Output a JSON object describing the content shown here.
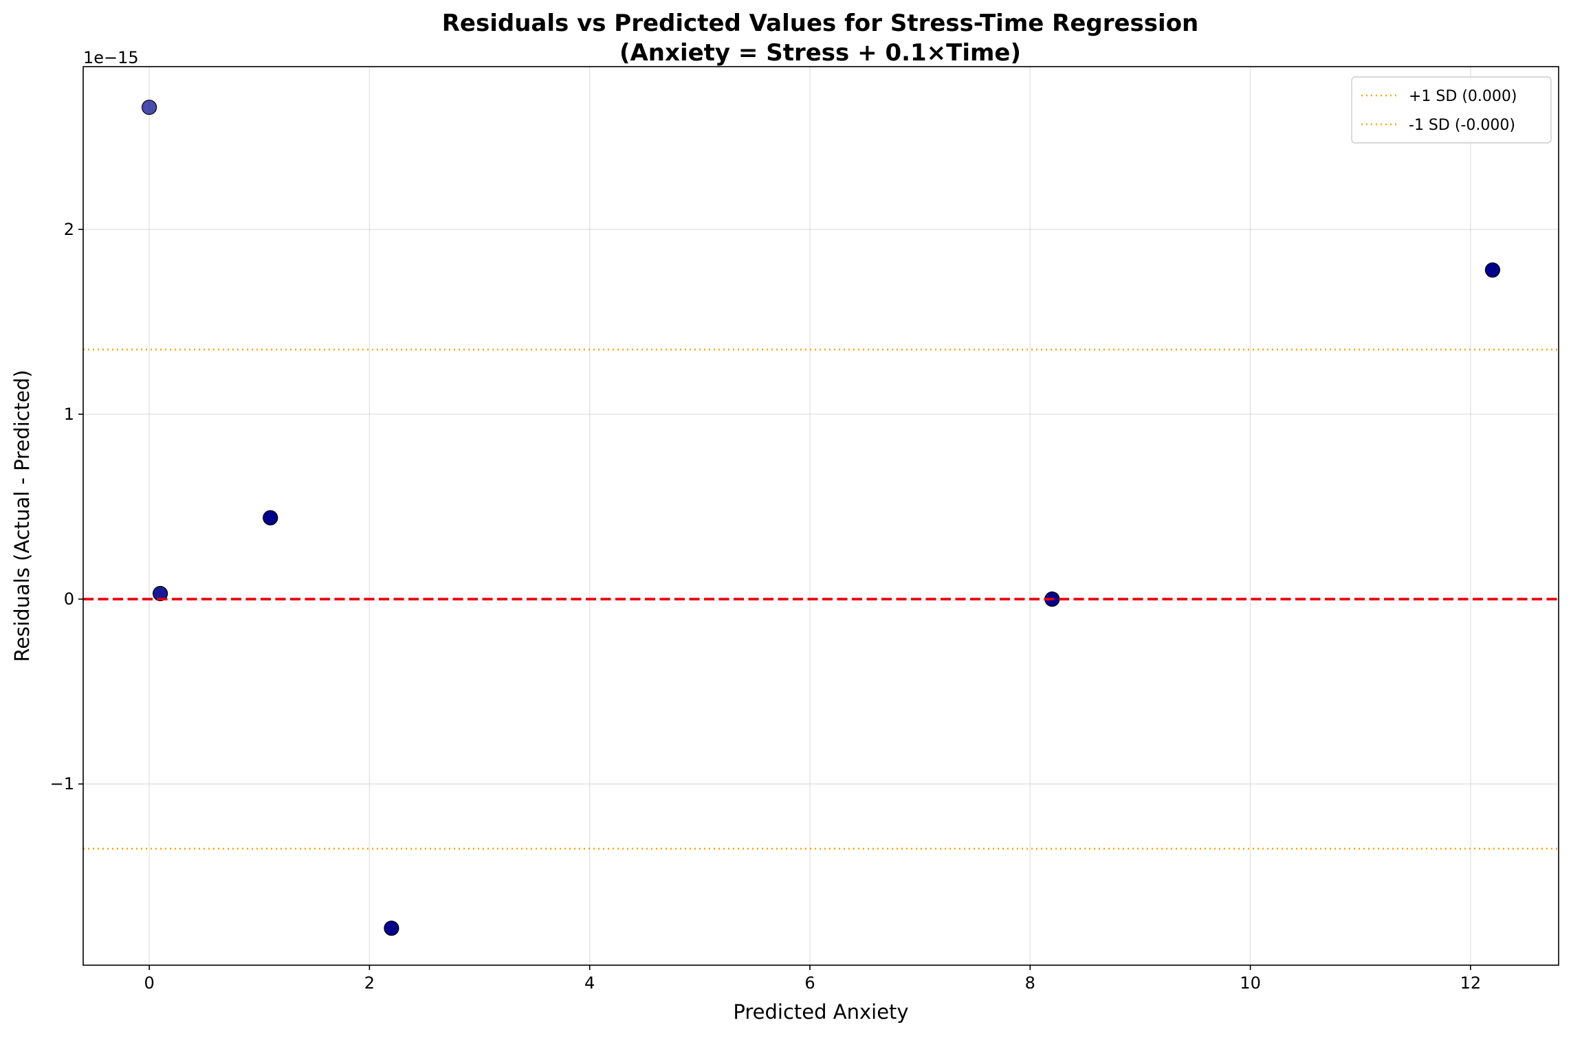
{
  "chart_data": {
    "type": "scatter",
    "title_line1": "Residuals vs Predicted Values for Stress-Time Regression",
    "title_line2": "(Anxiety = Stress + 0.1×Time)",
    "xlabel": "Predicted Anxiety",
    "ylabel": "Residuals (Actual - Predicted)",
    "y_offset_label": "1e−15",
    "y_scale": 1e-15,
    "xlim": [
      -0.6,
      12.8
    ],
    "ylim": [
      -1.98,
      2.88
    ],
    "x_ticks": [
      0,
      2,
      4,
      6,
      8,
      10,
      12
    ],
    "x_tick_labels": [
      "0",
      "2",
      "4",
      "6",
      "8",
      "10",
      "12"
    ],
    "y_ticks": [
      -1,
      0,
      1,
      2
    ],
    "y_tick_labels": [
      "−1",
      "0",
      "1",
      "2"
    ],
    "grid": true,
    "points": [
      {
        "x": 0.0,
        "y": 2.66,
        "alpha": 0.7
      },
      {
        "x": 0.1,
        "y": 0.03,
        "alpha": 0.9
      },
      {
        "x": 1.1,
        "y": 0.44,
        "alpha": 1.0
      },
      {
        "x": 2.2,
        "y": -1.78,
        "alpha": 1.0
      },
      {
        "x": 8.2,
        "y": 0.0,
        "alpha": 1.0
      },
      {
        "x": 12.2,
        "y": 1.78,
        "alpha": 1.0
      }
    ],
    "point_color": "#00008b",
    "point_edge_color": "#000000",
    "zero_line": {
      "y": 0,
      "color": "#e8000b",
      "style": "dashed"
    },
    "sd_lines": [
      {
        "label": "+1 SD (0.000)",
        "y": 1.35,
        "color": "#ffa500"
      },
      {
        "label": "-1 SD (-0.000)",
        "y": -1.35,
        "color": "#ffa500"
      }
    ],
    "legend_position": "top-right"
  }
}
